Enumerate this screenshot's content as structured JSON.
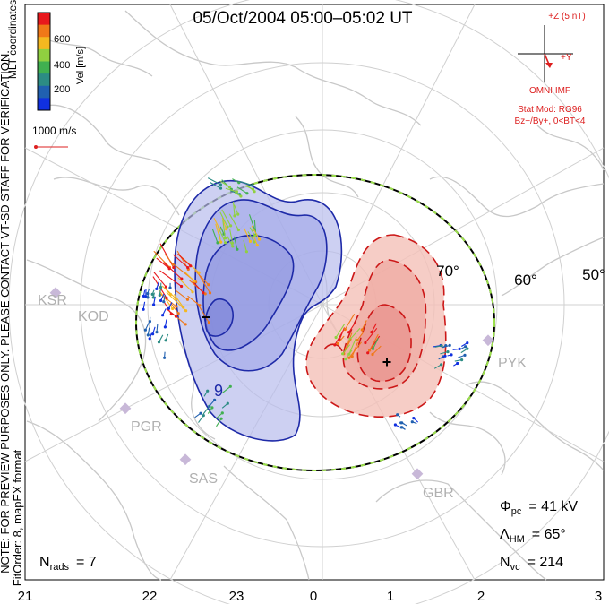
{
  "header": {
    "title": "05/Oct/2004 05:00–05:02 UT"
  },
  "colorbar": {
    "axis_label": "Vel [m/s]",
    "ticks": [
      "600",
      "400",
      "200"
    ],
    "colors": [
      "#e8181c",
      "#f07818",
      "#f4b820",
      "#90d040",
      "#40b050",
      "#2c8c84",
      "#2060b0",
      "#1030e0"
    ]
  },
  "coord_label": "MLT coordinates",
  "scale_vector_label": "1000 m/s",
  "watermark": "NOTE: FOR PREVIEW PURPOSES ONLY. PLEASE CONTACT VT-SD STAFF FOR VERIFICATION.",
  "fit_info": "FitOrder: 8, mapEX format",
  "imf": {
    "bz_label": "+Z (5 nT)",
    "by_label": "+Y",
    "source": "OMNI IMF",
    "stat_mod": "Stat Mod: RG96",
    "condition": "Bz−/By+, 0<BT<4"
  },
  "latitude_labels": [
    "70°",
    "60°",
    "50°"
  ],
  "stations": [
    "KSR",
    "KOD",
    "PGR",
    "SAS",
    "PYK",
    "GBR"
  ],
  "potential_labels": [
    "−",
    "9",
    "+"
  ],
  "stats": {
    "phi_pc": {
      "symbol": "Φ",
      "sub": "pc",
      "value": "= 41  kV"
    },
    "lambda_hm": {
      "symbol": "Λ",
      "sub": "HM",
      "value": "= 65°"
    },
    "n_vc": {
      "symbol": "N",
      "sub": "vc",
      "value": "= 214"
    },
    "n_rads": {
      "symbol": "N",
      "sub": "rads",
      "value": "= 7"
    }
  },
  "mlt_ticks": [
    "21",
    "22",
    "23",
    "0",
    "1",
    "2",
    "3"
  ],
  "colors": {
    "negative_contour": "#1e2aa8",
    "negative_fill": "#b8bcec",
    "positive_contour": "#cc1818",
    "positive_fill": "#f4c0b8",
    "imf_red": "#dd2020",
    "coastline": "#c8c8c8",
    "grid": "#d0d0d0"
  }
}
